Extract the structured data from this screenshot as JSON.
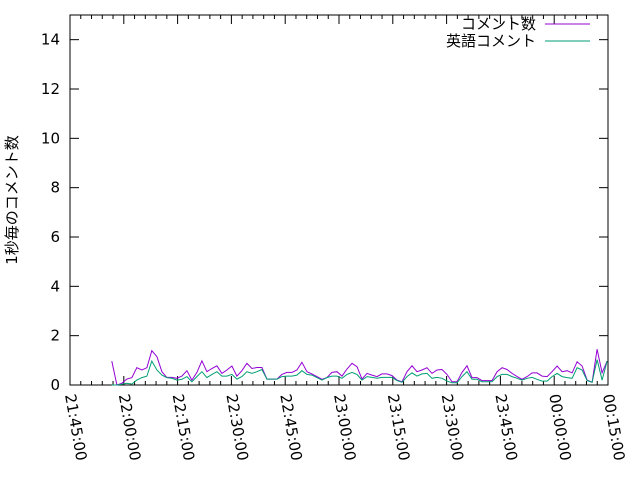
{
  "chart_data": {
    "type": "line",
    "title": "",
    "xlabel": "",
    "ylabel": "1秒毎のコメント数",
    "ylim": [
      0,
      15
    ],
    "xlim": [
      "21:45:00",
      "00:15:00"
    ],
    "yticks": [
      "0",
      "2",
      "4",
      "6",
      "8",
      "10",
      "12",
      "14"
    ],
    "xticks": [
      "21:45:00",
      "22:00:00",
      "22:15:00",
      "22:30:00",
      "22:45:00",
      "23:00:00",
      "23:15:00",
      "23:30:00",
      "23:45:00",
      "00:00:00",
      "00:15:00"
    ],
    "grid": false,
    "legend_position": "top-right",
    "x": [
      "21:56:40",
      "21:58:04",
      "21:59:27",
      "22:00:51",
      "22:02:15",
      "22:03:38",
      "22:05:02",
      "22:06:26",
      "22:07:49",
      "22:09:13",
      "22:10:37",
      "22:12:00",
      "22:13:24",
      "22:14:48",
      "22:16:12",
      "22:17:35",
      "22:18:59",
      "22:20:23",
      "22:21:46",
      "22:23:10",
      "22:24:34",
      "22:25:57",
      "22:27:21",
      "22:28:45",
      "22:30:08",
      "22:31:32",
      "22:32:56",
      "22:34:19",
      "22:35:43",
      "22:37:07",
      "22:38:31",
      "22:39:54",
      "22:41:18",
      "22:42:42",
      "22:44:05",
      "22:45:29",
      "22:46:53",
      "22:48:16",
      "22:49:40",
      "22:51:04",
      "22:52:27",
      "22:53:51",
      "22:55:15",
      "22:56:38",
      "22:58:02",
      "22:59:26",
      "23:00:50",
      "23:02:13",
      "23:03:37",
      "23:05:01",
      "23:06:24",
      "23:07:48",
      "23:09:12",
      "23:10:35",
      "23:11:59",
      "23:13:23",
      "23:14:46",
      "23:16:10",
      "23:17:34",
      "23:18:57",
      "23:20:21",
      "23:21:45",
      "23:23:09",
      "23:24:32",
      "23:25:56",
      "23:27:20",
      "23:28:43",
      "23:30:07",
      "23:31:31",
      "23:32:54",
      "23:34:18",
      "23:35:42",
      "23:37:05",
      "23:38:29",
      "23:39:53",
      "23:41:16",
      "23:42:40",
      "23:44:04",
      "23:45:28",
      "23:46:51",
      "23:48:15",
      "23:49:39",
      "23:51:02",
      "23:52:26",
      "23:53:50",
      "23:55:13",
      "23:56:37",
      "23:58:01",
      "23:59:24",
      "00:00:48",
      "00:02:12",
      "00:03:35",
      "00:04:59",
      "00:06:23",
      "00:07:47",
      "00:09:10",
      "00:10:34",
      "00:11:58",
      "00:13:21",
      "00:14:45"
    ],
    "series": [
      {
        "name": "コメント数",
        "color": "#9400d3",
        "values": [
          0.97,
          0,
          0.07,
          0.24,
          0.3,
          0.7,
          0.61,
          0.7,
          1.39,
          1.15,
          0.54,
          0.31,
          0.31,
          0.27,
          0.36,
          0.58,
          0.2,
          0.51,
          0.98,
          0.54,
          0.67,
          0.78,
          0.47,
          0.61,
          0.77,
          0.36,
          0.58,
          0.88,
          0.67,
          0.71,
          0.71,
          0.24,
          0.24,
          0.24,
          0.43,
          0.51,
          0.51,
          0.61,
          0.92,
          0.54,
          0.45,
          0.34,
          0.23,
          0.3,
          0.51,
          0.54,
          0.36,
          0.65,
          0.88,
          0.74,
          0.24,
          0.47,
          0.4,
          0.34,
          0.45,
          0.45,
          0.38,
          0.2,
          0.13,
          0.54,
          0.78,
          0.54,
          0.61,
          0.7,
          0.47,
          0.61,
          0.63,
          0.43,
          0.13,
          0.13,
          0.51,
          0.78,
          0.3,
          0.3,
          0.18,
          0.18,
          0.18,
          0.54,
          0.7,
          0.63,
          0.47,
          0.34,
          0.23,
          0.34,
          0.49,
          0.49,
          0.36,
          0.34,
          0.54,
          0.77,
          0.54,
          0.58,
          0.49,
          0.94,
          0.77,
          0.2,
          0.11,
          1.45,
          0.49,
          0.97
        ]
      },
      {
        "name": "英語コメント",
        "color": "#009e73",
        "values": [
          0,
          0,
          0.03,
          0.07,
          0.04,
          0.2,
          0.3,
          0.36,
          0.97,
          0.61,
          0.4,
          0.3,
          0.27,
          0.2,
          0.23,
          0.34,
          0.13,
          0.34,
          0.54,
          0.3,
          0.43,
          0.54,
          0.36,
          0.36,
          0.43,
          0.24,
          0.34,
          0.54,
          0.47,
          0.54,
          0.63,
          0.24,
          0.24,
          0.24,
          0.34,
          0.36,
          0.36,
          0.4,
          0.58,
          0.43,
          0.4,
          0.3,
          0.2,
          0.3,
          0.36,
          0.36,
          0.27,
          0.43,
          0.51,
          0.43,
          0.2,
          0.34,
          0.31,
          0.27,
          0.31,
          0.31,
          0.31,
          0.18,
          0.11,
          0.34,
          0.49,
          0.36,
          0.45,
          0.47,
          0.27,
          0.31,
          0.27,
          0.16,
          0.09,
          0.09,
          0.34,
          0.54,
          0.23,
          0.23,
          0.13,
          0.13,
          0.13,
          0.34,
          0.43,
          0.43,
          0.34,
          0.27,
          0.2,
          0.27,
          0.31,
          0.23,
          0.16,
          0.16,
          0.34,
          0.47,
          0.34,
          0.3,
          0.27,
          0.7,
          0.61,
          0.18,
          0.11,
          1.03,
          0.2,
          0.97
        ]
      }
    ]
  }
}
